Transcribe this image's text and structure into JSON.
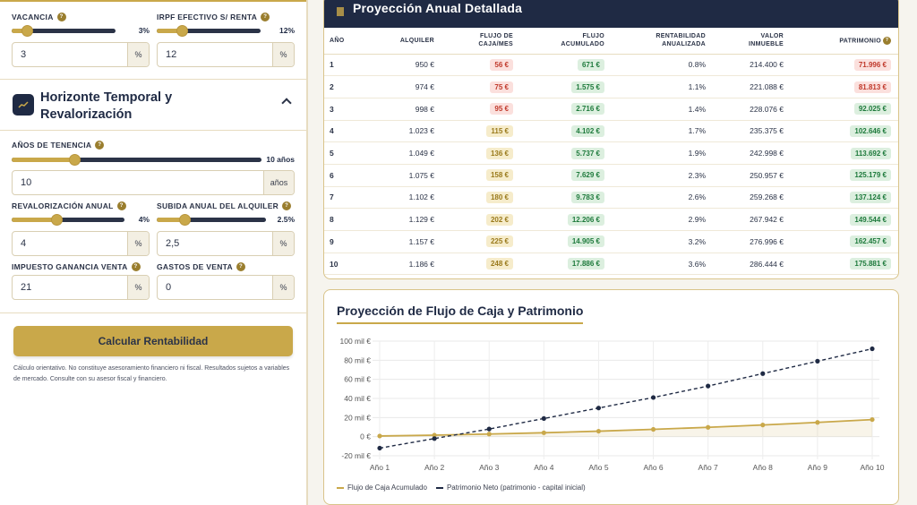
{
  "left_panel": {
    "vacancia": {
      "label": "VACANCIA",
      "value_display": "3%",
      "input_value": "3",
      "unit": "%",
      "level_pct": 3,
      "max_pct": 20
    },
    "irpf": {
      "label": "IRPF EFECTIVO S/ RENTA",
      "value_display": "12%",
      "input_value": "12",
      "unit": "%",
      "level_pct": 12,
      "max_pct": 50
    },
    "section": {
      "title": "Horizonte Temporal y Revalorización"
    },
    "anos": {
      "label": "AÑOS DE TENENCIA",
      "value_display": "10 años",
      "input_value": "10",
      "unit": "años",
      "level": 10,
      "max": 40
    },
    "revalorizacion": {
      "label": "REVALORIZACIÓN ANUAL",
      "value_display": "4%",
      "input_value": "4",
      "unit": "%",
      "level_pct": 4,
      "max_pct": 10
    },
    "subida": {
      "label": "SUBIDA ANUAL DEL ALQUILER",
      "value_display": "2.5%",
      "input_value": "2,5",
      "unit": "%",
      "level_pct": 2.5,
      "max_pct": 10
    },
    "impuesto": {
      "label": "IMPUESTO GANANCIA VENTA",
      "input_value": "21",
      "unit": "%"
    },
    "gastos": {
      "label": "GASTOS DE VENTA",
      "input_value": "0",
      "unit": "%"
    },
    "calc_button": "Calcular Rentabilidad",
    "disclaimer": "Cálculo orientativo. No constituye asesoramiento financiero ni fiscal. Resultados sujetos a variables de mercado. Consulte con su asesor fiscal y financiero."
  },
  "table": {
    "title": "Proyección Anual Detallada",
    "headers": [
      "AÑO",
      "ALQUILER",
      "FLUJO DE CAJA/MES",
      "FLUJO ACUMULADO",
      "RENTABILIDAD ANUALIZADA",
      "VALOR INMUEBLE",
      "PATRIMONIO"
    ],
    "rows": [
      {
        "year": "1",
        "rent": "950 €",
        "cf": "56 €",
        "cf_tone": "red",
        "acc": "671 €",
        "rent_pct": "0.8%",
        "value": "214.400 €",
        "equity": "71.996 €",
        "eq_tone": "red"
      },
      {
        "year": "2",
        "rent": "974 €",
        "cf": "75 €",
        "cf_tone": "red",
        "acc": "1.575 €",
        "rent_pct": "1.1%",
        "value": "221.088 €",
        "equity": "81.813 €",
        "eq_tone": "red"
      },
      {
        "year": "3",
        "rent": "998 €",
        "cf": "95 €",
        "cf_tone": "red",
        "acc": "2.716 €",
        "rent_pct": "1.4%",
        "value": "228.076 €",
        "equity": "92.025 €",
        "eq_tone": "green"
      },
      {
        "year": "4",
        "rent": "1.023 €",
        "cf": "115 €",
        "cf_tone": "yellow",
        "acc": "4.102 €",
        "rent_pct": "1.7%",
        "value": "235.375 €",
        "equity": "102.646 €",
        "eq_tone": "green"
      },
      {
        "year": "5",
        "rent": "1.049 €",
        "cf": "136 €",
        "cf_tone": "yellow",
        "acc": "5.737 €",
        "rent_pct": "1.9%",
        "value": "242.998 €",
        "equity": "113.692 €",
        "eq_tone": "green"
      },
      {
        "year": "6",
        "rent": "1.075 €",
        "cf": "158 €",
        "cf_tone": "yellow",
        "acc": "7.629 €",
        "rent_pct": "2.3%",
        "value": "250.957 €",
        "equity": "125.179 €",
        "eq_tone": "green"
      },
      {
        "year": "7",
        "rent": "1.102 €",
        "cf": "180 €",
        "cf_tone": "yellow",
        "acc": "9.783 €",
        "rent_pct": "2.6%",
        "value": "259.268 €",
        "equity": "137.124 €",
        "eq_tone": "green"
      },
      {
        "year": "8",
        "rent": "1.129 €",
        "cf": "202 €",
        "cf_tone": "yellow",
        "acc": "12.206 €",
        "rent_pct": "2.9%",
        "value": "267.942 €",
        "equity": "149.544 €",
        "eq_tone": "green"
      },
      {
        "year": "9",
        "rent": "1.157 €",
        "cf": "225 €",
        "cf_tone": "yellow",
        "acc": "14.905 €",
        "rent_pct": "3.2%",
        "value": "276.996 €",
        "equity": "162.457 €",
        "eq_tone": "green"
      },
      {
        "year": "10",
        "rent": "1.186 €",
        "cf": "248 €",
        "cf_tone": "yellow",
        "acc": "17.886 €",
        "rent_pct": "3.6%",
        "value": "286.444 €",
        "equity": "175.881 €",
        "eq_tone": "green"
      }
    ]
  },
  "chart_data": {
    "type": "line",
    "title": "Proyección de Flujo de Caja y Patrimonio",
    "x": [
      "Año 1",
      "Año 2",
      "Año 3",
      "Año 4",
      "Año 5",
      "Año 6",
      "Año 7",
      "Año 8",
      "Año 9",
      "Año 10"
    ],
    "yticks": [
      "100 mil €",
      "80 mil €",
      "60 mil €",
      "40 mil €",
      "20 mil €",
      "0 €",
      "-20 mil €"
    ],
    "ylim": [
      -20000,
      100000
    ],
    "grid": true,
    "legend_position": "bottom-left",
    "series": [
      {
        "name": "Flujo de Caja Acumulado",
        "color": "#c9a84a",
        "style": "solid",
        "fill": true,
        "values": [
          671,
          1575,
          2716,
          4102,
          5737,
          7629,
          9783,
          12206,
          14905,
          17886
        ]
      },
      {
        "name": "Patrimonio Neto (patrimonio - capital inicial)",
        "color": "#1f2a44",
        "style": "dashed",
        "fill": false,
        "values": [
          -12000,
          -2000,
          8000,
          19000,
          30000,
          41000,
          53000,
          66000,
          79000,
          92000
        ]
      }
    ]
  },
  "colors": {
    "navy": "#1f2a44",
    "gold": "#c9a84a"
  }
}
